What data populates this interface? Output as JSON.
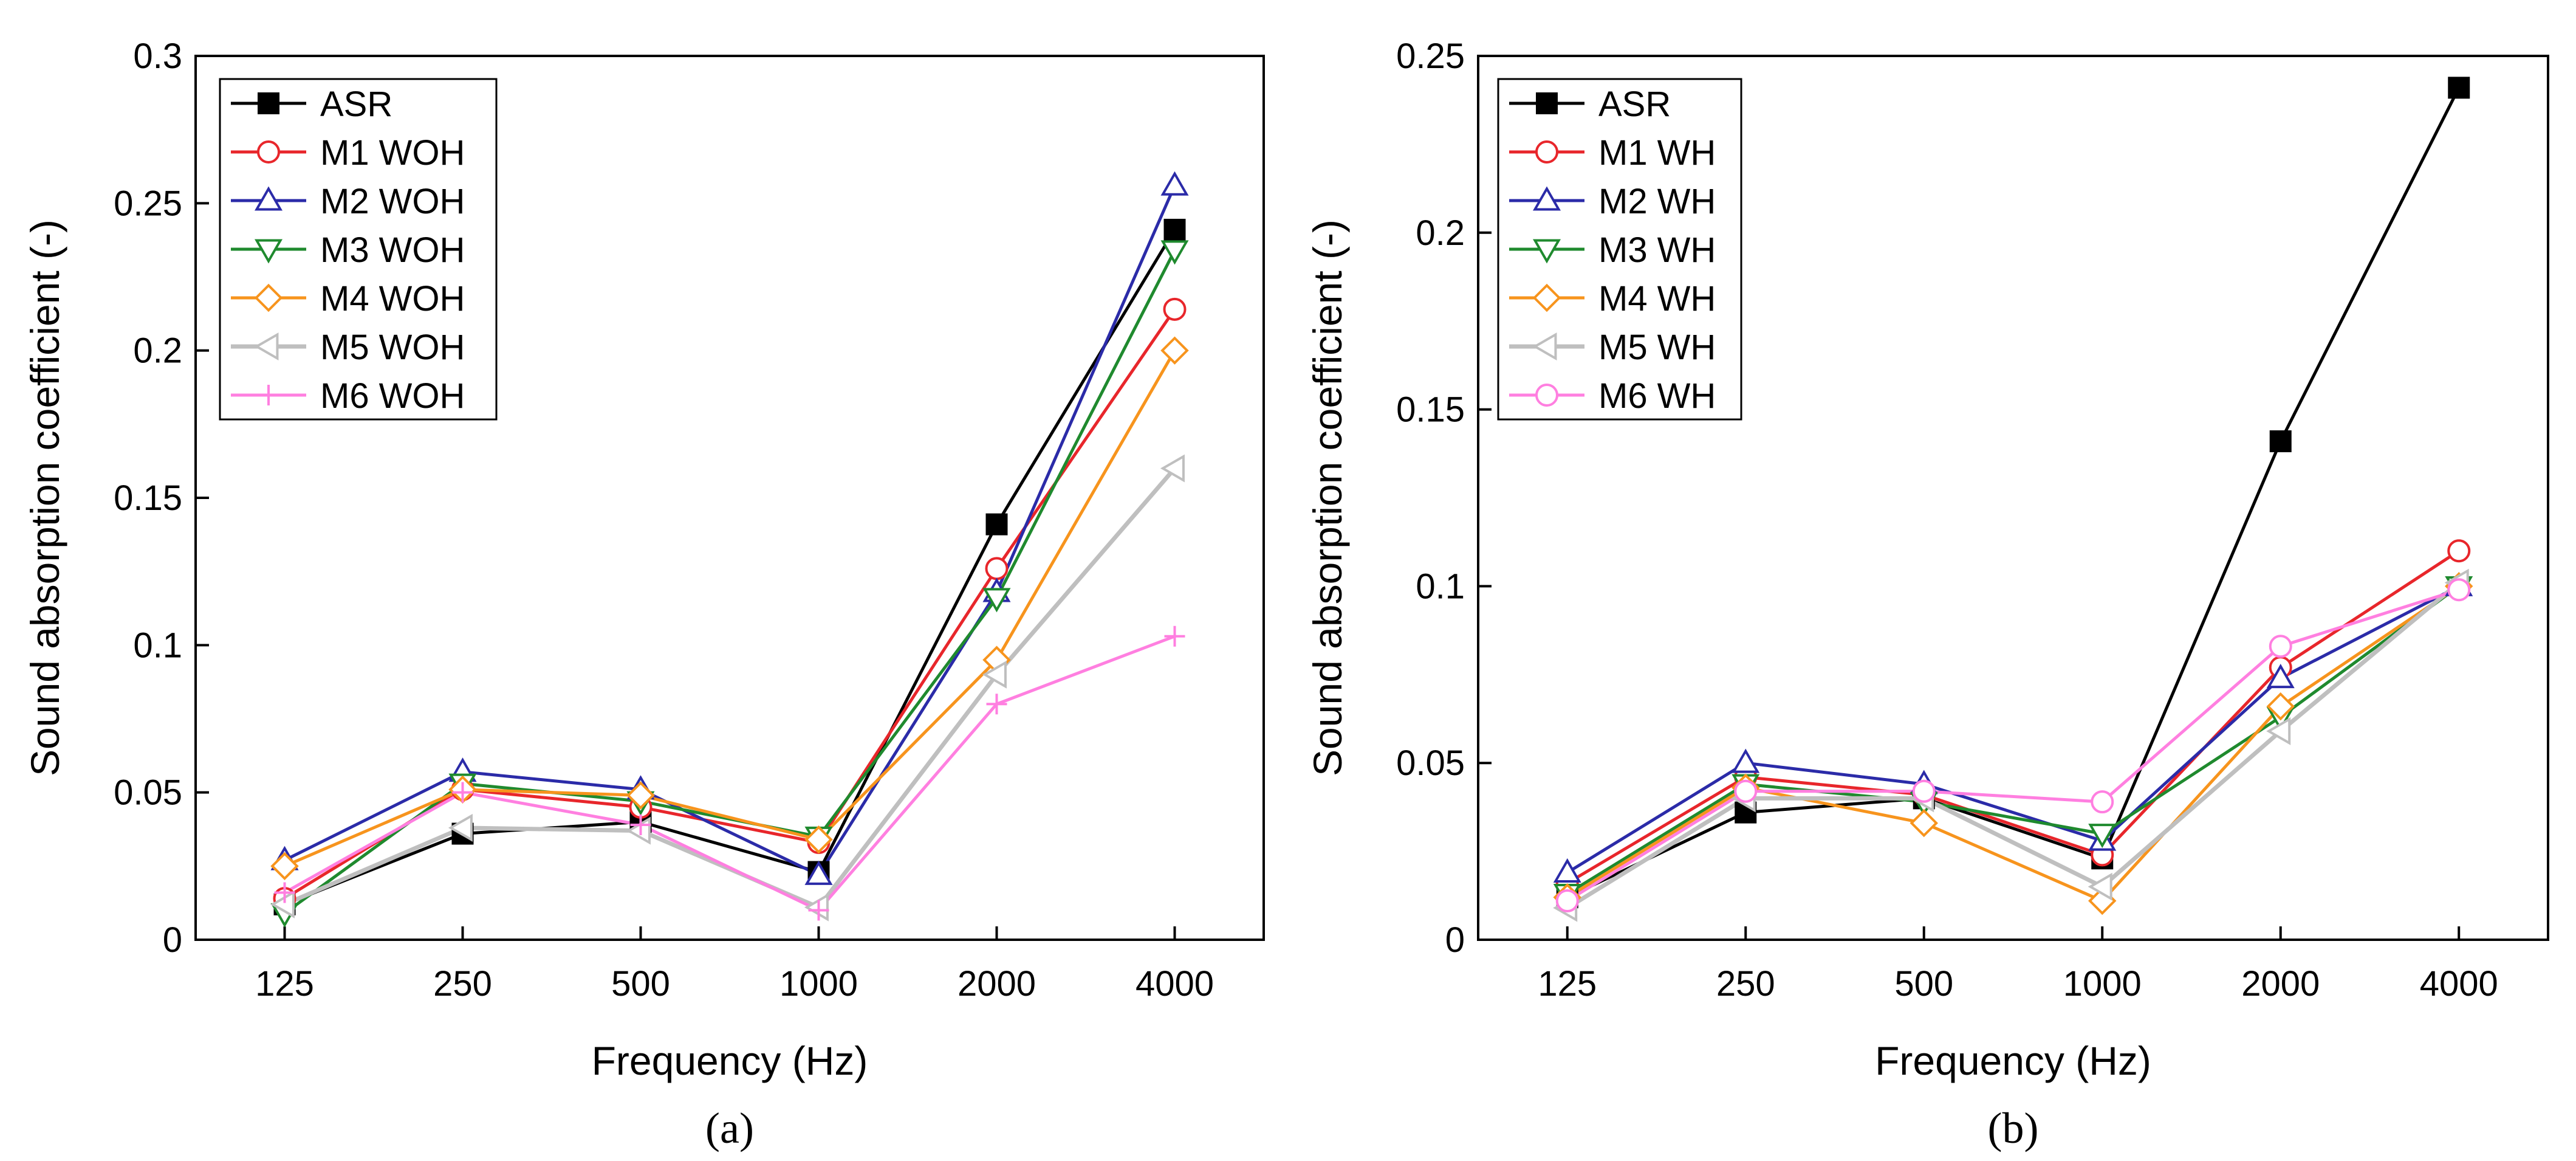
{
  "chart_data": [
    {
      "type": "line",
      "panel_label": "(a)",
      "xlabel": "Frequency (Hz)",
      "ylabel": "Sound absorption coefficient (-)",
      "categories": [
        "125",
        "250",
        "500",
        "1000",
        "2000",
        "4000"
      ],
      "ylim": [
        0,
        0.3
      ],
      "yticks": [
        0,
        0.05,
        0.1,
        0.15,
        0.2,
        0.25,
        0.3
      ],
      "ytick_labels": [
        "0",
        "0.05",
        "0.1",
        "0.15",
        "0.2",
        "0.25",
        "0.3"
      ],
      "legend_position": "top-left",
      "series": [
        {
          "name": "ASR",
          "color": "#000000",
          "marker": "square-filled",
          "values": [
            0.012,
            0.036,
            0.04,
            0.023,
            0.141,
            0.241
          ]
        },
        {
          "name": "M1 WOH",
          "color": "#e8262b",
          "marker": "circle",
          "values": [
            0.014,
            0.051,
            0.045,
            0.033,
            0.126,
            0.214
          ]
        },
        {
          "name": "M2 WOH",
          "color": "#2b2ba8",
          "marker": "triangle-up",
          "values": [
            0.027,
            0.057,
            0.051,
            0.022,
            0.118,
            0.256
          ]
        },
        {
          "name": "M3 WOH",
          "color": "#1f8a2e",
          "marker": "triangle-down",
          "values": [
            0.009,
            0.053,
            0.047,
            0.035,
            0.116,
            0.234
          ]
        },
        {
          "name": "M4 WOH",
          "color": "#f7941d",
          "marker": "diamond",
          "values": [
            0.025,
            0.051,
            0.049,
            0.034,
            0.095,
            0.2
          ]
        },
        {
          "name": "M5 WOH",
          "color": "#bfbfbf",
          "marker": "triangle-left",
          "values": [
            0.012,
            0.038,
            0.037,
            0.011,
            0.09,
            0.16
          ]
        },
        {
          "name": "M6 WOH",
          "color": "#ff7fe0",
          "marker": "plus",
          "values": [
            0.016,
            0.05,
            0.039,
            0.01,
            0.08,
            0.103
          ]
        }
      ]
    },
    {
      "type": "line",
      "panel_label": "(b)",
      "xlabel": "Frequency (Hz)",
      "ylabel": "Sound absorption coefficient (-)",
      "categories": [
        "125",
        "250",
        "500",
        "1000",
        "2000",
        "4000"
      ],
      "ylim": [
        0,
        0.25
      ],
      "yticks": [
        0,
        0.05,
        0.1,
        0.15,
        0.2,
        0.25
      ],
      "ytick_labels": [
        "0",
        "0.05",
        "0.1",
        "0.15",
        "0.2",
        "0.25"
      ],
      "legend_position": "top-left",
      "series": [
        {
          "name": "ASR",
          "color": "#000000",
          "marker": "square-filled",
          "values": [
            0.012,
            0.036,
            0.04,
            0.023,
            0.141,
            0.241
          ]
        },
        {
          "name": "M1 WH",
          "color": "#e8262b",
          "marker": "circle",
          "values": [
            0.016,
            0.046,
            0.041,
            0.024,
            0.077,
            0.11
          ]
        },
        {
          "name": "M2 WH",
          "color": "#2b2ba8",
          "marker": "triangle-up",
          "values": [
            0.019,
            0.05,
            0.044,
            0.028,
            0.074,
            0.1
          ]
        },
        {
          "name": "M3 WH",
          "color": "#1f8a2e",
          "marker": "triangle-down",
          "values": [
            0.013,
            0.044,
            0.039,
            0.03,
            0.063,
            0.1
          ]
        },
        {
          "name": "M4 WH",
          "color": "#f7941d",
          "marker": "diamond",
          "values": [
            0.012,
            0.043,
            0.033,
            0.011,
            0.066,
            0.1
          ]
        },
        {
          "name": "M5 WH",
          "color": "#bfbfbf",
          "marker": "triangle-left",
          "values": [
            0.009,
            0.04,
            0.04,
            0.015,
            0.059,
            0.101
          ]
        },
        {
          "name": "M6 WH",
          "color": "#ff7fe0",
          "marker": "circle",
          "values": [
            0.011,
            0.042,
            0.042,
            0.039,
            0.083,
            0.099
          ]
        }
      ]
    }
  ]
}
